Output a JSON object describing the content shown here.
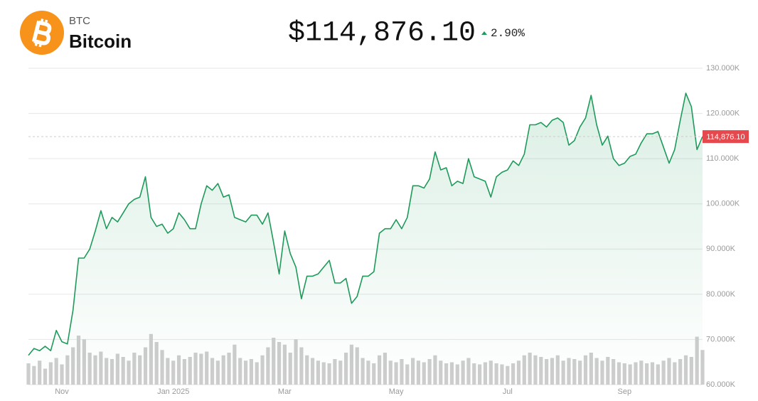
{
  "header": {
    "symbol": "BTC",
    "name": "Bitcoin",
    "price": "$114,876.10",
    "change": "2.90%"
  },
  "chart_data": {
    "type": "line",
    "categories": [
      null,
      null,
      null,
      null,
      null,
      null,
      "Nov",
      null,
      null,
      null,
      null,
      null,
      null,
      null,
      null,
      null,
      null,
      null,
      null,
      null,
      null,
      null,
      null,
      null,
      null,
      null,
      "Jan 2025",
      null,
      null,
      null,
      null,
      null,
      null,
      null,
      null,
      null,
      null,
      null,
      null,
      null,
      null,
      null,
      null,
      null,
      null,
      null,
      "Mar",
      null,
      null,
      null,
      null,
      null,
      null,
      null,
      null,
      null,
      null,
      null,
      null,
      null,
      null,
      null,
      null,
      null,
      null,
      null,
      "May",
      null,
      null,
      null,
      null,
      null,
      null,
      null,
      null,
      null,
      null,
      null,
      null,
      null,
      null,
      null,
      null,
      null,
      null,
      null,
      "Jul",
      null,
      null,
      null,
      null,
      null,
      null,
      null,
      null,
      null,
      null,
      null,
      null,
      null,
      null,
      null,
      null,
      null,
      null,
      null,
      null,
      "Sep",
      null,
      null,
      null,
      null,
      null,
      null,
      null,
      null,
      null,
      null,
      null,
      null,
      null,
      null
    ],
    "series": [
      {
        "color": "#1e9a5a",
        "values": [
          66500,
          68000,
          67500,
          68500,
          67500,
          72000,
          69500,
          69000,
          76500,
          88000,
          88000,
          90000,
          94000,
          98500,
          94500,
          97000,
          96000,
          98000,
          100000,
          101000,
          101500,
          106000,
          97000,
          95000,
          95500,
          93500,
          94500,
          98000,
          96500,
          94500,
          94500,
          100000,
          104000,
          103000,
          104500,
          101500,
          102000,
          97000,
          96500,
          96000,
          97500,
          97500,
          95500,
          98000,
          91500,
          84500,
          94000,
          89000,
          86000,
          79000,
          84000,
          84000,
          84500,
          86000,
          87500,
          82500,
          82500,
          83500,
          78000,
          79500,
          84000,
          84000,
          85000,
          93500,
          94500,
          94500,
          96500,
          94500,
          97000,
          104000,
          104000,
          103500,
          105500,
          111500,
          107500,
          108000,
          104000,
          105000,
          104500,
          110000,
          106000,
          105500,
          105000,
          101500,
          106000,
          107000,
          107500,
          109500,
          108500,
          111000,
          117500,
          117500,
          118000,
          117000,
          118500,
          119000,
          118000,
          113000,
          114000,
          117000,
          119000,
          124000,
          117500,
          113000,
          115000,
          110000,
          108500,
          109000,
          110500,
          111000,
          113500,
          115500,
          115500,
          116000,
          112500,
          109000,
          112000,
          118500,
          124500,
          121500,
          112000,
          114876.1
        ]
      }
    ],
    "volume": {
      "color": "#cdcdcd",
      "values": [
        40,
        35,
        45,
        30,
        42,
        50,
        38,
        55,
        70,
        92,
        85,
        60,
        55,
        62,
        50,
        48,
        58,
        52,
        45,
        60,
        55,
        70,
        95,
        80,
        65,
        50,
        45,
        55,
        48,
        52,
        60,
        58,
        62,
        50,
        45,
        55,
        60,
        75,
        50,
        45,
        48,
        42,
        55,
        70,
        88,
        80,
        75,
        60,
        85,
        70,
        55,
        50,
        45,
        42,
        40,
        48,
        45,
        60,
        75,
        70,
        50,
        45,
        40,
        55,
        60,
        45,
        42,
        48,
        38,
        50,
        45,
        42,
        48,
        55,
        45,
        40,
        42,
        38,
        45,
        50,
        40,
        38,
        42,
        45,
        40,
        38,
        35,
        40,
        45,
        55,
        60,
        55,
        52,
        48,
        50,
        55,
        45,
        50,
        48,
        45,
        55,
        60,
        50,
        45,
        52,
        48,
        42,
        40,
        38,
        42,
        45,
        40,
        42,
        38,
        45,
        50,
        42,
        48,
        55,
        52,
        90,
        65
      ]
    },
    "ylim": [
      60000,
      130000
    ],
    "yticks": [
      {
        "value": 60000,
        "label": "60.000K"
      },
      {
        "value": 70000,
        "label": "70.000K"
      },
      {
        "value": 80000,
        "label": "80.000K"
      },
      {
        "value": 90000,
        "label": "90.000K"
      },
      {
        "value": 100000,
        "label": "100.000K"
      },
      {
        "value": 110000,
        "label": "110.000K"
      },
      {
        "value": 120000,
        "label": "120.000K"
      },
      {
        "value": 130000,
        "label": "130.000K"
      }
    ],
    "grid": true,
    "last_price": 114876.1,
    "last_price_label": "114,876.10",
    "last_price_color": "#e5484d"
  }
}
